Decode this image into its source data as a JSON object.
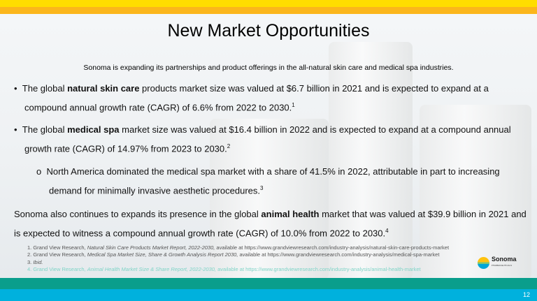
{
  "title": "New Market Opportunities",
  "subtitle": "Sonoma is expanding its partnerships and product offerings in the all-natural skin care and medical spa industries.",
  "bullets": [
    {
      "pre": "The global ",
      "bold": "natural skin care",
      "post": " products market size was valued at $6.7 billion in 2021 and is expected to expand at a compound annual growth rate (CAGR) of 6.6% from 2022 to 2030.",
      "sup": "1"
    },
    {
      "pre": "The global ",
      "bold": "medical spa",
      "post": " market size was valued at $16.4 billion in 2022 and is expected to expand at a compound annual growth rate (CAGR) of 14.97% from 2023 to 2030.",
      "sup": "2"
    }
  ],
  "subbullet": {
    "marker": "o",
    "text": "North America dominated the medical spa market with a share of 41.5% in 2022, attributable in part to increasing demand for minimally invasive aesthetic procedures.",
    "sup": "3"
  },
  "paragraph": {
    "pre": "Sonoma also continues to expands its presence in the global ",
    "bold": "animal health",
    "post": " market that was valued at $39.9 billion in 2021 and is expected to witness a compound annual growth rate (CAGR) of 10.0% from 2022 to 2030.",
    "sup": "4"
  },
  "footnotes": [
    {
      "pre": "1. Grand View Research, ",
      "it": "Natural Skin Care Products Market Report, 2022-2030,",
      "post": " available at https://www.grandviewresearch.com/industry-analysis/natural-skin-care-products-market"
    },
    {
      "pre": "2. Grand View Research, ",
      "it": "Medical Spa Market Size, Share & Growth Analysis Report 2030,",
      "post": " available at https://www.grandviewresearch.com/industry-analysis/medical-spa-market"
    },
    {
      "pre": "3. ",
      "it": "Ibid.",
      "post": ""
    },
    {
      "pre": "4. Grand View Research, ",
      "it": "Animal Health Market Size & Share Report, 2022-2030,",
      "post": " available at https://www.grandviewresearch.com/industry-analysis/animal-health-market"
    }
  ],
  "logo": {
    "name": "Sonoma",
    "tagline": "PHARMACEUTICALS"
  },
  "page_number": "12",
  "colors": {
    "yellow": "#ffdd00",
    "orange": "#fbb61c",
    "teal": "#0a9e8c",
    "blue": "#00b1dd"
  }
}
